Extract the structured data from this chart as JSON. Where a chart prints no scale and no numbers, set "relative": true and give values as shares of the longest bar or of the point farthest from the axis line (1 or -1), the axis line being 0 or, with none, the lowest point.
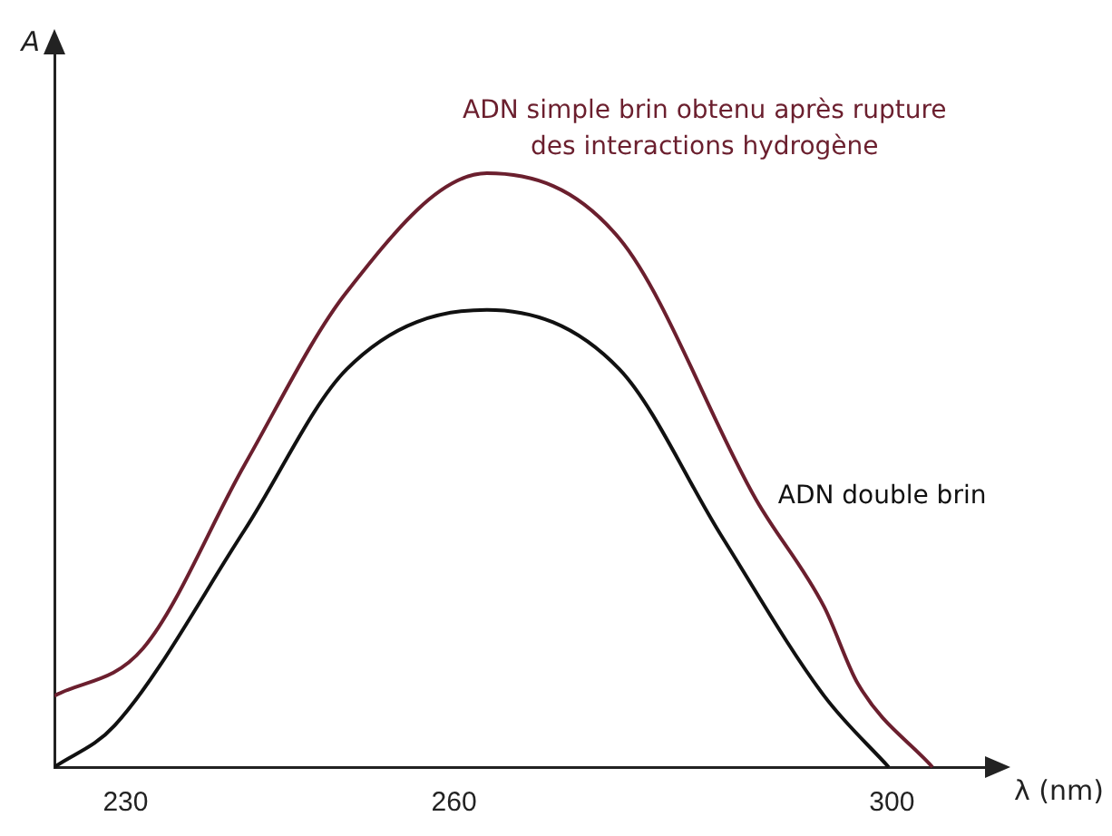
{
  "chart_data": {
    "type": "line",
    "relative": true,
    "ylabel": "A",
    "xlabel": "λ (nm)",
    "xlim": [
      223.5,
      308.5
    ],
    "xticks": [
      230,
      260,
      300
    ],
    "grid": false,
    "legend": false,
    "marker": "none",
    "line_style": "solid",
    "tick_labels": "x",
    "series": [
      {
        "name": "ADN simple brin obtenu après rupture des interactions hydrogène",
        "color": "#6b1f2e",
        "x": [
          223.5,
          231.6,
          240.9,
          250.2,
          263,
          275.1,
          287.6,
          293.8,
          296.9,
          303.7
        ],
        "values": [
          0.12,
          0.2,
          0.51,
          0.8,
          1,
          0.89,
          0.45,
          0.27,
          0.14,
          0
        ]
      },
      {
        "name": "ADN double brin",
        "color": "#111111",
        "x": [
          223.5,
          229,
          240.9,
          250.2,
          263,
          275.1,
          284.4,
          293.8,
          299.7
        ],
        "values": [
          0,
          0.07,
          0.4,
          0.67,
          0.77,
          0.67,
          0.39,
          0.12,
          0
        ]
      }
    ]
  }
}
